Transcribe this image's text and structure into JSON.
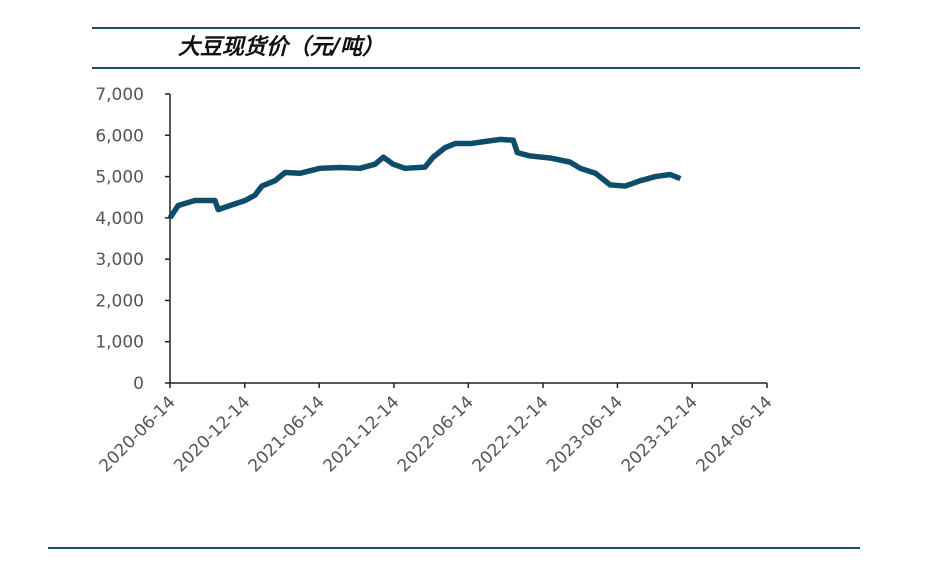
{
  "chart_data": {
    "type": "line",
    "title": "大豆现货价（元/吨）",
    "x": [
      "2020-06-14",
      "2020-07-04",
      "2020-08-14",
      "2020-10-02",
      "2020-10-10",
      "2020-11-08",
      "2020-12-15",
      "2021-01-08",
      "2021-01-25",
      "2021-02-26",
      "2021-03-23",
      "2021-04-28",
      "2021-06-16",
      "2021-08-04",
      "2021-09-22",
      "2021-10-29",
      "2021-11-18",
      "2021-12-12",
      "2022-01-10",
      "2022-02-28",
      "2022-03-20",
      "2022-04-18",
      "2022-05-13",
      "2022-06-19",
      "2022-07-25",
      "2022-08-31",
      "2022-10-02",
      "2022-10-12",
      "2022-11-12",
      "2022-12-31",
      "2023-02-18",
      "2023-03-15",
      "2023-04-21",
      "2023-05-27",
      "2023-07-03",
      "2023-08-09",
      "2023-09-15",
      "2023-10-21",
      "2023-11-15"
    ],
    "series": [
      {
        "name": "大豆现货价",
        "color": "#0e4c6c",
        "values": [
          4000,
          4300,
          4420,
          4420,
          4200,
          4300,
          4420,
          4550,
          4770,
          4900,
          5100,
          5080,
          5200,
          5220,
          5200,
          5300,
          5470,
          5300,
          5200,
          5230,
          5470,
          5700,
          5800,
          5800,
          5850,
          5900,
          5880,
          5580,
          5500,
          5450,
          5350,
          5200,
          5080,
          4800,
          4770,
          4900,
          5000,
          5050,
          4950
        ]
      }
    ],
    "xlim": [
      "2020-06-14",
      "2024-06-14"
    ],
    "xticks": [
      "2020-06-14",
      "2020-12-14",
      "2021-06-14",
      "2021-12-14",
      "2022-06-14",
      "2022-12-14",
      "2023-06-14",
      "2023-12-14",
      "2024-06-14"
    ],
    "ylim": [
      0,
      7000
    ],
    "yticks": [
      0,
      {
        "value": 1000,
        "label": "1,000"
      },
      {
        "value": 2000,
        "label": "2,000"
      },
      {
        "value": 3000,
        "label": "3,000"
      },
      {
        "value": 4000,
        "label": "4,000"
      },
      {
        "value": 5000,
        "label": "5,000"
      },
      {
        "value": 6000,
        "label": "6,000"
      },
      {
        "value": 7000,
        "label": "7,000"
      }
    ]
  }
}
